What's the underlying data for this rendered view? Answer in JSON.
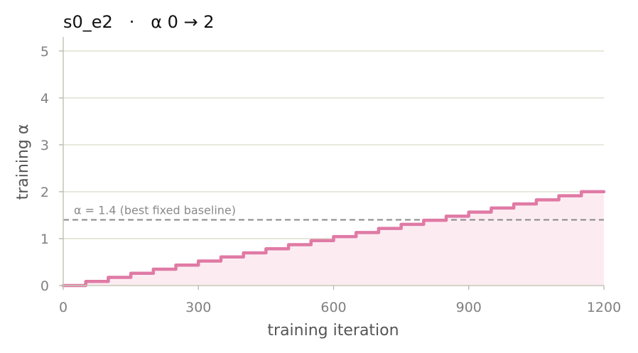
{
  "chart_data": {
    "type": "line",
    "title": "s0_e2   ·   α 0 → 2",
    "xlabel": "training iteration",
    "ylabel": "training α",
    "xlim": [
      0,
      1200
    ],
    "ylim": [
      0,
      5.3
    ],
    "xticks": [
      0,
      300,
      600,
      900,
      1200
    ],
    "xtick_labels": [
      "0",
      "300",
      "600",
      "900",
      "1200"
    ],
    "yticks": [
      0,
      1,
      2,
      3,
      4,
      5
    ],
    "ytick_labels": [
      "0",
      "1",
      "2",
      "3",
      "4",
      "5"
    ],
    "grid": "horizontal",
    "step_interval": 50,
    "series": [
      {
        "style": "step",
        "color": "#e07aa5",
        "fill_color": "#fcecf2",
        "x": [
          0,
          50,
          100,
          150,
          200,
          250,
          300,
          350,
          400,
          450,
          500,
          550,
          600,
          650,
          700,
          750,
          800,
          850,
          900,
          950,
          1000,
          1050,
          1100,
          1150,
          1200
        ],
        "y": [
          0,
          0.087,
          0.174,
          0.261,
          0.348,
          0.435,
          0.522,
          0.609,
          0.696,
          0.783,
          0.87,
          0.957,
          1.043,
          1.13,
          1.217,
          1.304,
          1.391,
          1.478,
          1.565,
          1.652,
          1.739,
          1.826,
          1.913,
          2.0,
          2.0
        ]
      }
    ],
    "reference_lines": [
      {
        "y": 1.4,
        "style": "dashed",
        "color": "#888888",
        "label": "α = 1.4 (best fixed baseline)"
      }
    ]
  }
}
